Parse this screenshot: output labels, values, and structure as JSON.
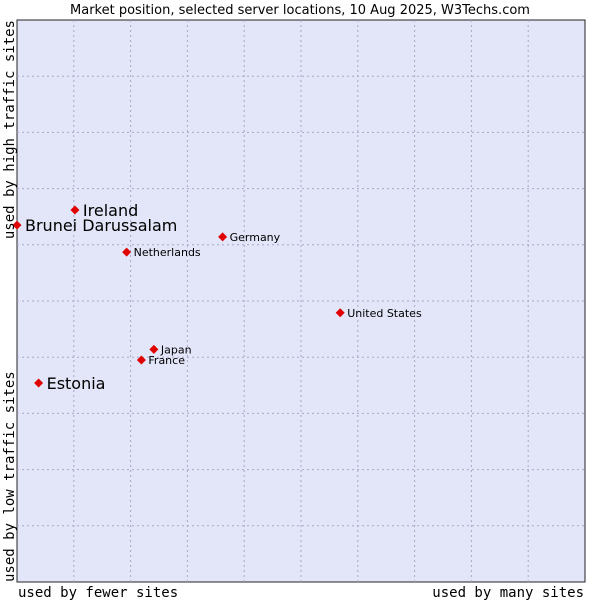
{
  "chart_data": {
    "type": "scatter",
    "title": "Market position, selected server locations, 10 Aug 2025, W3Techs.com",
    "xlabel_left": "used by fewer sites",
    "xlabel_right": "used by many sites",
    "ylabel_bottom": "used by low traffic sites",
    "ylabel_top": "used by high traffic sites",
    "grid": true,
    "xlim": [
      0,
      100
    ],
    "ylim": [
      0,
      100
    ],
    "colors": {
      "plot_bg": "#e3e5f8",
      "grid": "#a8a8c8",
      "point": "#e00000"
    },
    "points": [
      {
        "label": "Ireland",
        "x": 10.2,
        "y": 66.2,
        "emphasis": true
      },
      {
        "label": "Brunei Darussalam",
        "x": 0.0,
        "y": 63.5,
        "emphasis": true
      },
      {
        "label": "Germany",
        "x": 36.2,
        "y": 61.4,
        "emphasis": false
      },
      {
        "label": "Netherlands",
        "x": 19.3,
        "y": 58.7,
        "emphasis": false
      },
      {
        "label": "United States",
        "x": 56.9,
        "y": 47.9,
        "emphasis": false
      },
      {
        "label": "Japan",
        "x": 24.1,
        "y": 41.4,
        "emphasis": false
      },
      {
        "label": "France",
        "x": 21.9,
        "y": 39.5,
        "emphasis": false
      },
      {
        "label": "Estonia",
        "x": 3.8,
        "y": 35.4,
        "emphasis": true
      }
    ]
  }
}
